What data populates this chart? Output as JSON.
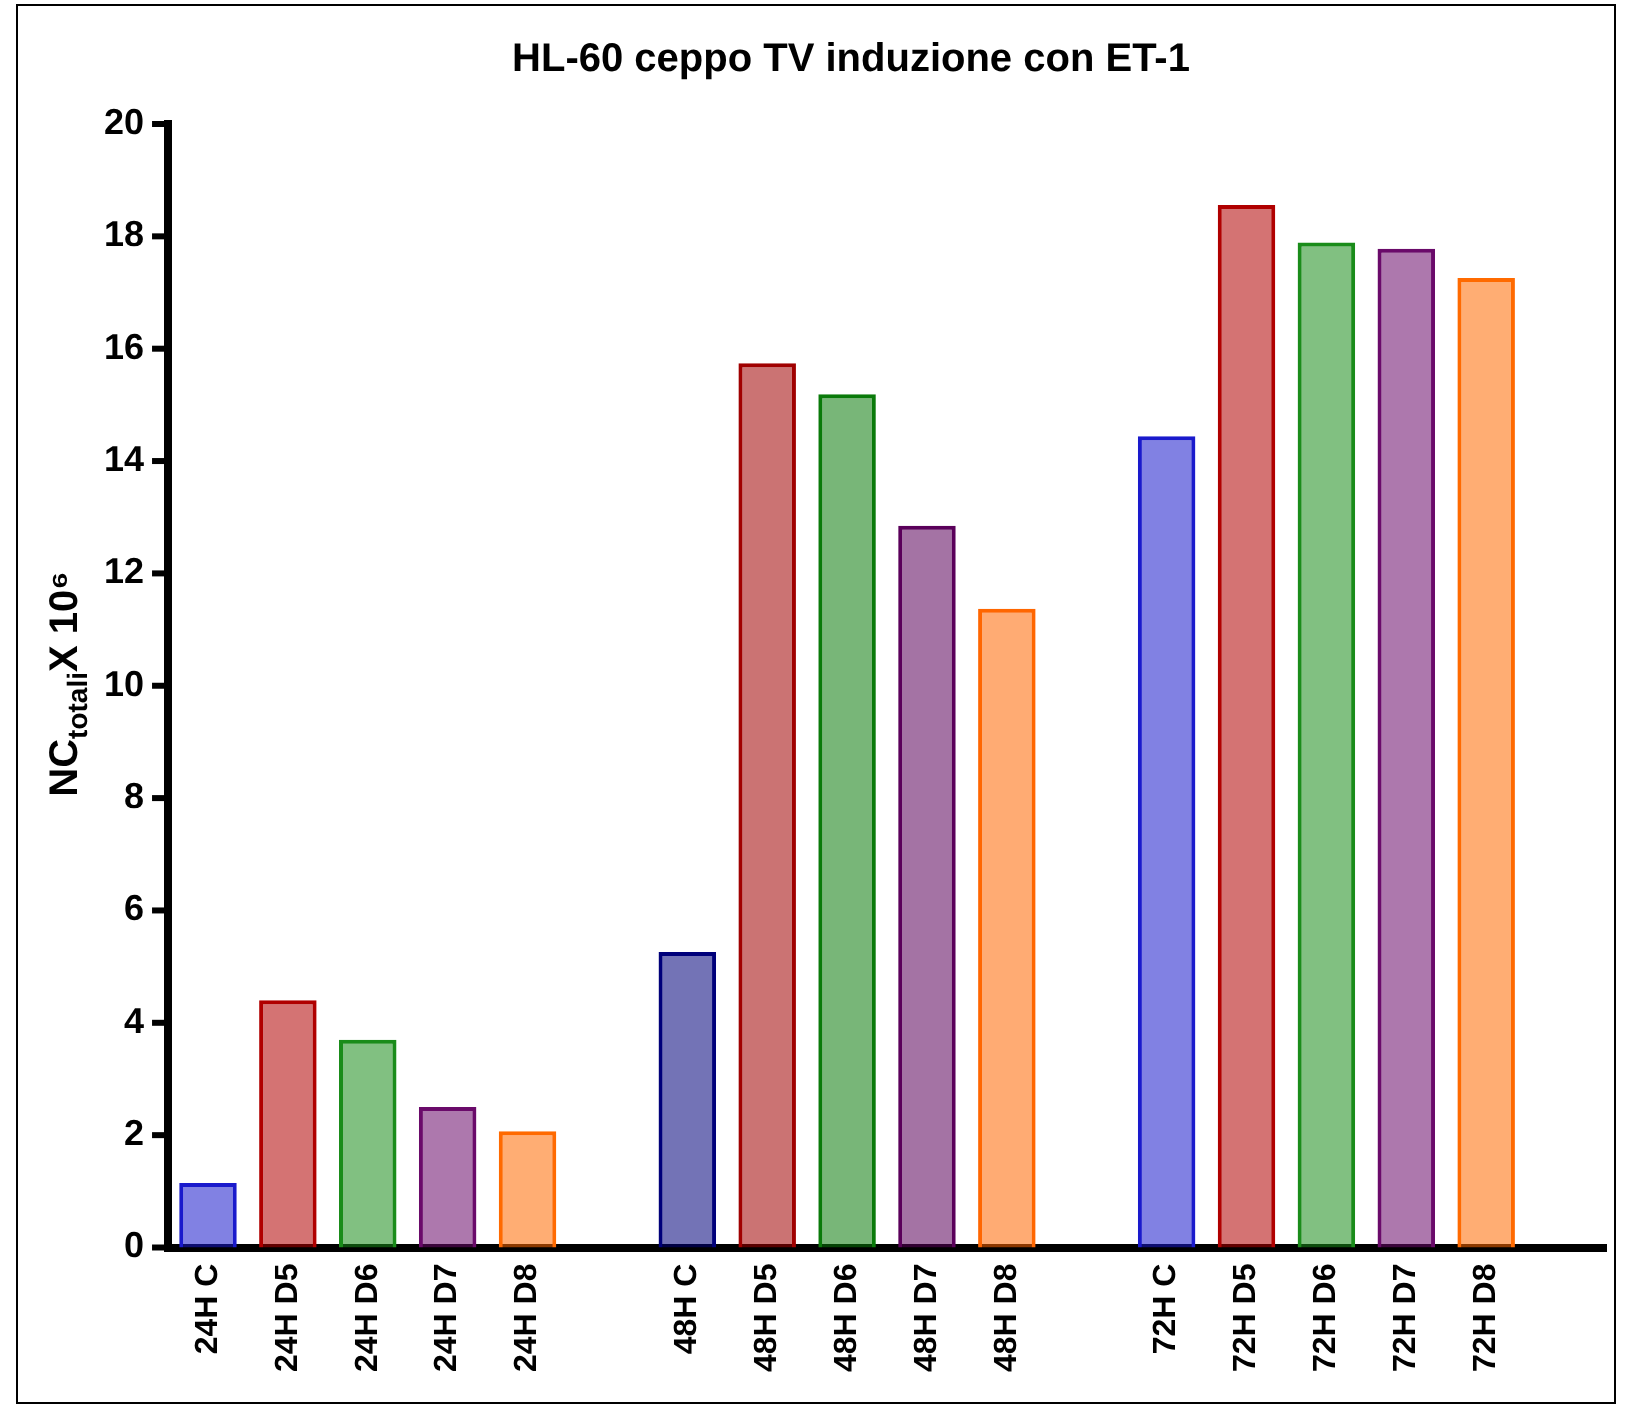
{
  "chart_data": {
    "type": "bar",
    "title": "HL-60 ceppo TV induzione con ET-1",
    "ylabel": "NC$_{totali}$X 10⁶",
    "categories": [
      "24H C",
      "24H D5",
      "24H D6",
      "24H D7",
      "24H D8",
      null,
      "48H C",
      "48H D5",
      "48H D6",
      "48H D7",
      "48H D8",
      null,
      "72H C",
      "72H D5",
      "72H D6",
      "72H D7",
      "72H D8",
      null
    ],
    "values": [
      1.15,
      4.4,
      3.7,
      2.5,
      2.07,
      null,
      5.26,
      15.74,
      15.19,
      12.85,
      11.37,
      null,
      14.44,
      18.56,
      17.89,
      17.78,
      17.26,
      null
    ],
    "colors": [
      "#1a1acc",
      "#b00000",
      "#1a8c1a",
      "#6a0a6a",
      "#ff6a00",
      "#ffffff",
      "#00007a",
      "#a00000",
      "#0a7a0a",
      "#5a005a",
      "#ff6600",
      "#ffffff",
      "#1a1acc",
      "#b00000",
      "#1a8c1a",
      "#6a0a6a",
      "#ff6a00",
      "#ffffff"
    ],
    "ylim": [
      0,
      20
    ],
    "yticks": [
      0,
      2,
      4,
      6,
      8,
      10,
      12,
      14,
      16,
      18,
      20
    ],
    "grid": false,
    "legend": false
  }
}
